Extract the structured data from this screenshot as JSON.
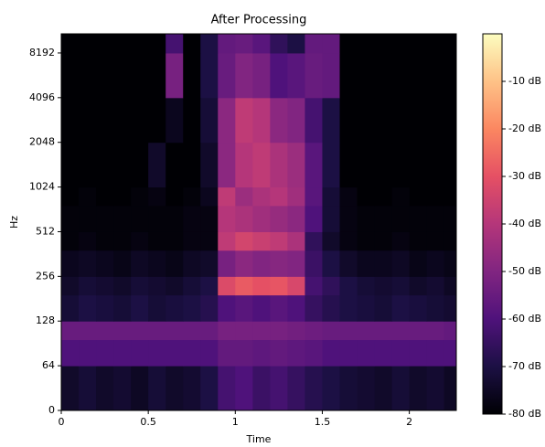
{
  "chart_data": {
    "type": "spectrogram",
    "title": "After Processing",
    "x_label": "Time",
    "y_label": "Hz",
    "xlim": [
      0,
      2.27
    ],
    "xticks": [
      0,
      0.5,
      1,
      1.5,
      2
    ],
    "ylim": [
      0,
      11025
    ],
    "yscale": "symlog",
    "linthresh": 64,
    "yticks": [
      0,
      64,
      128,
      256,
      512,
      1024,
      2048,
      4096,
      8192
    ],
    "clim": [
      -80,
      0
    ],
    "colormap": [
      "#000004",
      "#1c1044",
      "#4f127b",
      "#812581",
      "#b5367a",
      "#e55064",
      "#fb8761",
      "#fec287",
      "#fcfdbf"
    ],
    "cticks": [
      {
        "value": -10,
        "label": "-10 dB"
      },
      {
        "value": -20,
        "label": "-20 dB"
      },
      {
        "value": -30,
        "label": "-30 dB"
      },
      {
        "value": -40,
        "label": "-40 dB"
      },
      {
        "value": -50,
        "label": "-50 dB"
      },
      {
        "value": -60,
        "label": "-60 dB"
      },
      {
        "value": -70,
        "label": "-70 dB"
      },
      {
        "value": -80,
        "label": "-80 dB"
      }
    ],
    "time_edges": [
      0,
      0.1,
      0.2,
      0.3,
      0.4,
      0.5,
      0.6,
      0.7,
      0.8,
      0.9,
      1.0,
      1.1,
      1.2,
      1.3,
      1.4,
      1.5,
      1.6,
      1.7,
      1.8,
      1.9,
      2.0,
      2.1,
      2.2,
      2.27
    ],
    "freq_edges": [
      0,
      64,
      96,
      128,
      192,
      256,
      384,
      512,
      768,
      1024,
      2048,
      4096,
      8192,
      11025
    ],
    "values": [
      [
        -74,
        -72,
        -74,
        -73,
        -75,
        -72,
        -74,
        -73,
        -70,
        -62,
        -60,
        -64,
        -62,
        -65,
        -68,
        -70,
        -72,
        -73,
        -74,
        -72,
        -74,
        -73,
        -75
      ],
      [
        -60,
        -60,
        -60,
        -60,
        -60,
        -60,
        -60,
        -60,
        -60,
        -56,
        -56,
        -57,
        -56,
        -57,
        -58,
        -60,
        -60,
        -60,
        -60,
        -60,
        -60,
        -60,
        -60
      ],
      [
        -55,
        -55,
        -55,
        -55,
        -55,
        -55,
        -55,
        -55,
        -55,
        -52,
        -52,
        -52,
        -52,
        -53,
        -54,
        -55,
        -55,
        -55,
        -55,
        -55,
        -55,
        -55,
        -56
      ],
      [
        -72,
        -70,
        -71,
        -72,
        -70,
        -72,
        -71,
        -70,
        -68,
        -60,
        -58,
        -60,
        -58,
        -60,
        -65,
        -68,
        -70,
        -71,
        -72,
        -70,
        -71,
        -72,
        -73
      ],
      [
        -74,
        -72,
        -73,
        -74,
        -72,
        -73,
        -74,
        -72,
        -70,
        -32,
        -28,
        -30,
        -29,
        -33,
        -62,
        -66,
        -70,
        -72,
        -73,
        -72,
        -74,
        -73,
        -75
      ],
      [
        -76,
        -75,
        -76,
        -77,
        -75,
        -76,
        -77,
        -75,
        -74,
        -52,
        -48,
        -50,
        -49,
        -50,
        -64,
        -70,
        -74,
        -76,
        -76,
        -75,
        -77,
        -76,
        -77
      ],
      [
        -79,
        -78,
        -79,
        -79,
        -78,
        -79,
        -79,
        -78,
        -78,
        -38,
        -34,
        -36,
        -38,
        -42,
        -66,
        -74,
        -78,
        -79,
        -79,
        -78,
        -79,
        -79,
        -79
      ],
      [
        -79,
        -79,
        -79,
        -79,
        -79,
        -79,
        -79,
        -78,
        -78,
        -40,
        -42,
        -44,
        -46,
        -48,
        -60,
        -72,
        -78,
        -79,
        -79,
        -79,
        -79,
        -79,
        -79
      ],
      [
        -80,
        -79,
        -80,
        -80,
        -79,
        -78,
        -80,
        -79,
        -76,
        -38,
        -45,
        -42,
        -40,
        -44,
        -58,
        -72,
        -78,
        -80,
        -80,
        -79,
        -80,
        -80,
        -80
      ],
      [
        -80,
        -80,
        -80,
        -80,
        -80,
        -74,
        -80,
        -80,
        -74,
        -48,
        -40,
        -38,
        -42,
        -45,
        -58,
        -70,
        -80,
        -80,
        -80,
        -80,
        -80,
        -80,
        -80
      ],
      [
        -80,
        -80,
        -80,
        -80,
        -80,
        -80,
        -76,
        -80,
        -72,
        -48,
        -38,
        -40,
        -48,
        -50,
        -62,
        -70,
        -80,
        -80,
        -80,
        -80,
        -80,
        -80,
        -80
      ],
      [
        -80,
        -80,
        -80,
        -80,
        -80,
        -80,
        -52,
        -80,
        -70,
        -55,
        -50,
        -52,
        -60,
        -58,
        -55,
        -56,
        -80,
        -80,
        -80,
        -80,
        -80,
        -80,
        -80
      ],
      [
        -80,
        -80,
        -80,
        -80,
        -80,
        -80,
        -62,
        -80,
        -70,
        -56,
        -55,
        -58,
        -66,
        -70,
        -56,
        -56,
        -80,
        -80,
        -80,
        -80,
        -80,
        -80,
        -80
      ]
    ]
  }
}
